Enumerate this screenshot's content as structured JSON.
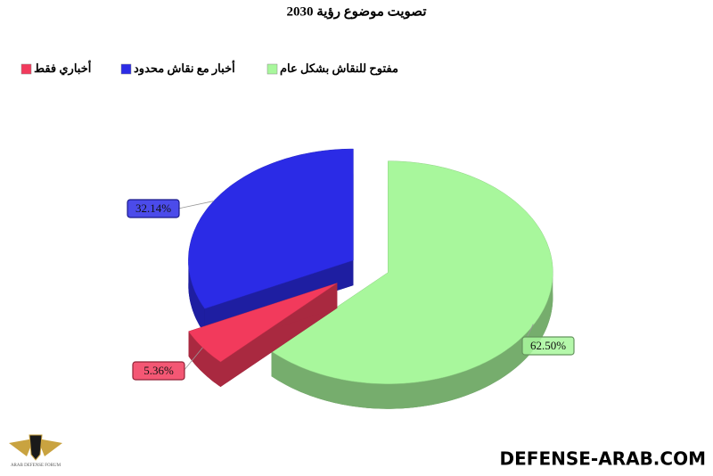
{
  "chart_data": {
    "type": "pie3d",
    "title": "تصويت موضوع رؤية 2030",
    "categories": [
      "مفتوح للنقاش بشكل عام",
      "أخباري فقط",
      "أخبار مع نقاش محدود"
    ],
    "values": [
      62.5,
      5.36,
      32.14
    ],
    "value_labels": [
      "62.50%",
      "5.36%",
      "32.14%"
    ],
    "colors": [
      "#a8f79c",
      "#f23a5c",
      "#2b2be6"
    ],
    "legend": "top"
  },
  "watermark": "DEFENSE-ARAB.COM",
  "logo_text": "ARAB DEFENSE FORUM"
}
